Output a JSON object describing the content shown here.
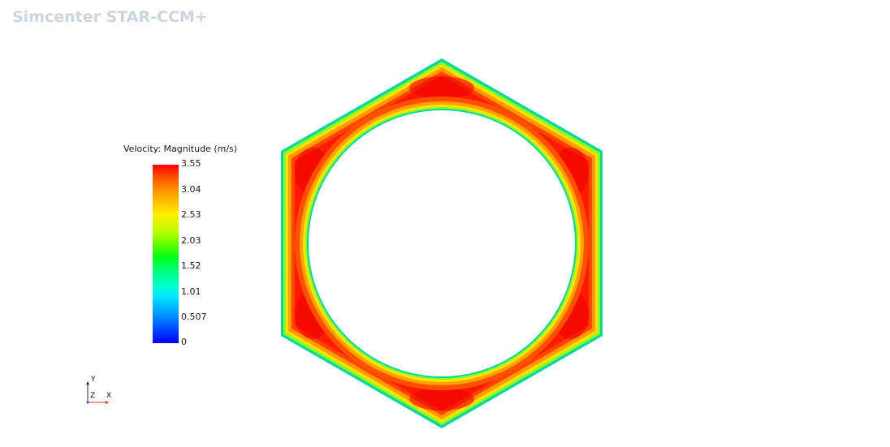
{
  "app": {
    "watermark": "Simcenter STAR-CCM+"
  },
  "legend": {
    "title": "Velocity: Magnitude (m/s)",
    "ticks": [
      "3.55",
      "3.04",
      "2.53",
      "2.03",
      "1.52",
      "1.01",
      "0.507",
      "0"
    ],
    "colormap_stops": [
      "#ff0000",
      "#ffa000",
      "#ffee00",
      "#00ff1a",
      "#00ffd0",
      "#0096ff",
      "#0000ff"
    ]
  },
  "axes_triad": {
    "y_label": "Y",
    "z_label": "Z",
    "x_label": "X",
    "x_color": "#e03030",
    "y_color": "#2a2a2a"
  },
  "scene": {
    "geometry": "hexagonal annulus with circular inner wall",
    "max_color": "#ff1a00",
    "wall_color": "#00d8a0"
  }
}
